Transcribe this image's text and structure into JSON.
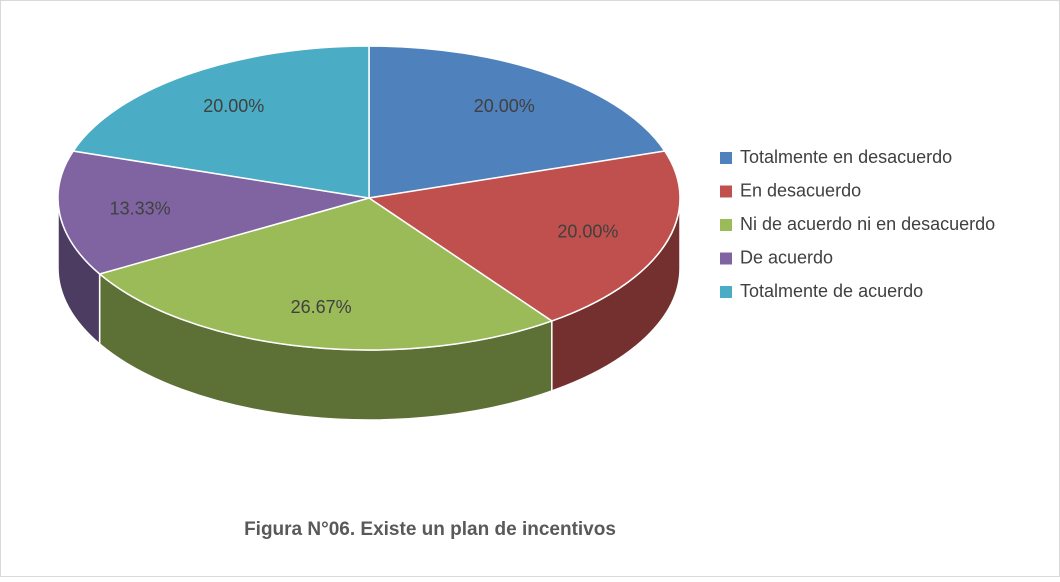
{
  "chart_data": {
    "type": "pie",
    "title": "Figura N°06. Existe un plan de incentivos",
    "categories": [
      "Totalmente en desacuerdo",
      "En desacuerdo",
      "Ni de acuerdo ni en desacuerdo",
      "De acuerdo",
      "Totalmente de acuerdo"
    ],
    "values": [
      20,
      20,
      26.67,
      13.33,
      20
    ],
    "value_labels": [
      "20.00%",
      "20.00%",
      "26.67%",
      "13.33%",
      "20.00%"
    ],
    "colors": [
      "#4f81bd",
      "#c0504d",
      "#9bbb59",
      "#8064a2",
      "#4bacc6"
    ],
    "legend": "right"
  }
}
